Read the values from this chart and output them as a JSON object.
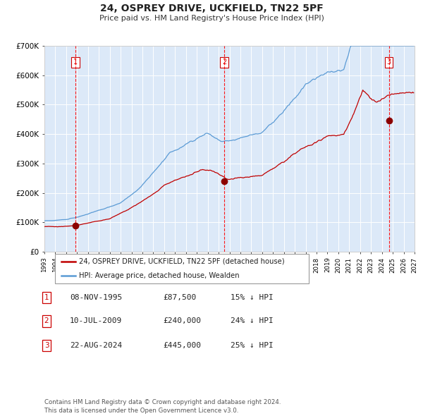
{
  "title": "24, OSPREY DRIVE, UCKFIELD, TN22 5PF",
  "subtitle": "Price paid vs. HM Land Registry's House Price Index (HPI)",
  "ylim": [
    0,
    700000
  ],
  "xlim_start": 1993.0,
  "xlim_end": 2027.0,
  "yticks": [
    0,
    100000,
    200000,
    300000,
    400000,
    500000,
    600000,
    700000
  ],
  "ytick_labels": [
    "£0",
    "£100K",
    "£200K",
    "£300K",
    "£400K",
    "£500K",
    "£600K",
    "£700K"
  ],
  "background_color": "#ffffff",
  "plot_bg_color": "#dce9f8",
  "grid_color": "#ffffff",
  "hpi_line_color": "#5b9bd5",
  "price_line_color": "#c00000",
  "sale_marker_color": "#8b0000",
  "vline_color": "#ff0000",
  "sale_points": [
    {
      "year": 1995.86,
      "price": 87500,
      "label": "1"
    },
    {
      "year": 2009.53,
      "price": 240000,
      "label": "2"
    },
    {
      "year": 2024.64,
      "price": 445000,
      "label": "3"
    }
  ],
  "legend_entries": [
    {
      "label": "24, OSPREY DRIVE, UCKFIELD, TN22 5PF (detached house)",
      "color": "#c00000"
    },
    {
      "label": "HPI: Average price, detached house, Wealden",
      "color": "#5b9bd5"
    }
  ],
  "table_rows": [
    {
      "num": "1",
      "date": "08-NOV-1995",
      "price": "£87,500",
      "hpi": "15% ↓ HPI"
    },
    {
      "num": "2",
      "date": "10-JUL-2009",
      "price": "£240,000",
      "hpi": "24% ↓ HPI"
    },
    {
      "num": "3",
      "date": "22-AUG-2024",
      "price": "£445,000",
      "hpi": "25% ↓ HPI"
    }
  ],
  "footnote": "Contains HM Land Registry data © Crown copyright and database right 2024.\nThis data is licensed under the Open Government Licence v3.0.",
  "xticks": [
    1993,
    1994,
    1995,
    1996,
    1997,
    1998,
    1999,
    2000,
    2001,
    2002,
    2003,
    2004,
    2005,
    2006,
    2007,
    2008,
    2009,
    2010,
    2011,
    2012,
    2013,
    2014,
    2015,
    2016,
    2017,
    2018,
    2019,
    2020,
    2021,
    2022,
    2023,
    2024,
    2025,
    2026,
    2027
  ]
}
